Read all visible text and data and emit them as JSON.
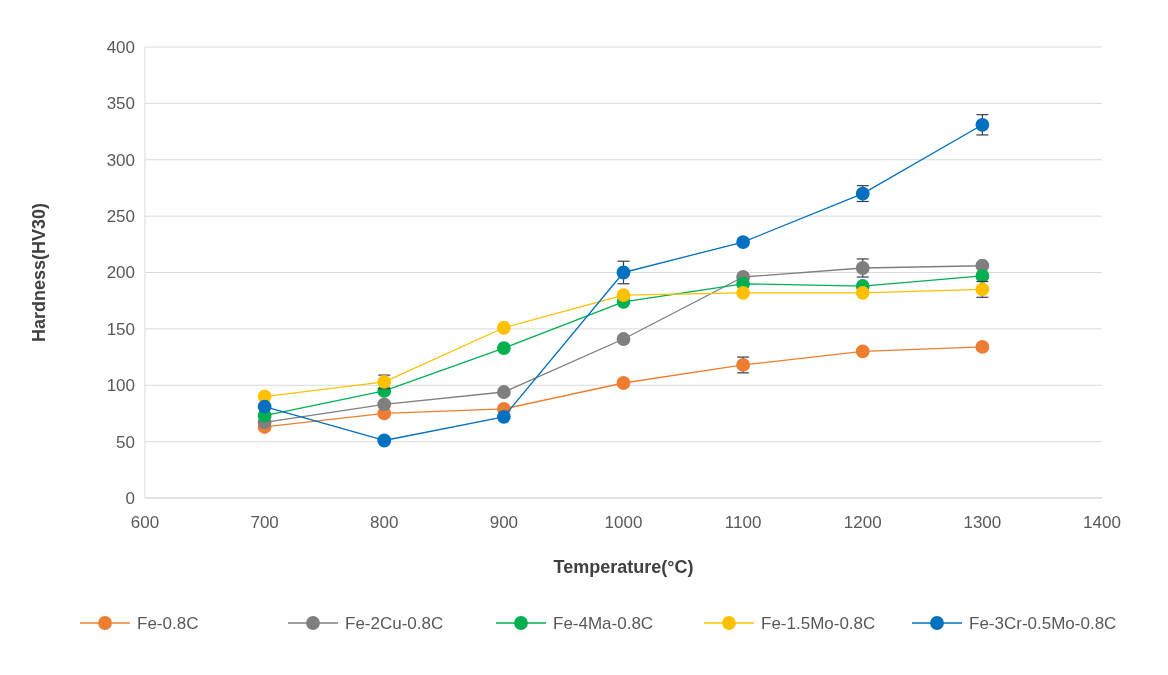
{
  "chart_data": {
    "type": "line",
    "xlabel": "Temperature(°C)",
    "ylabel": "Hardness(HV30)",
    "x": [
      700,
      800,
      900,
      1000,
      1100,
      1200,
      1300
    ],
    "xlim": [
      600,
      1400
    ],
    "xticks": [
      600,
      700,
      800,
      900,
      1000,
      1100,
      1200,
      1300,
      1400
    ],
    "ylim": [
      0,
      400
    ],
    "yticks": [
      0,
      50,
      100,
      150,
      200,
      250,
      300,
      350,
      400
    ],
    "grid": "y",
    "legend": "bottom",
    "marker": "circle",
    "series": [
      {
        "name": "Fe-0.8C",
        "color": "#ed7d31",
        "values": [
          63,
          75,
          79,
          102,
          118,
          130,
          134
        ],
        "errors": [
          null,
          null,
          null,
          null,
          7,
          null,
          null
        ]
      },
      {
        "name": "Fe-2Cu-0.8C",
        "color": "#7f7f7f",
        "values": [
          67,
          83,
          94,
          141,
          196,
          204,
          206
        ],
        "errors": [
          null,
          null,
          null,
          null,
          null,
          8,
          null
        ]
      },
      {
        "name": "Fe-4Ma-0.8C",
        "color": "#00b050",
        "values": [
          73,
          95,
          133,
          174,
          190,
          188,
          197
        ]
      },
      {
        "name": "Fe-1.5Mo-0.8C",
        "color": "#ffc000",
        "values": [
          90,
          103,
          151,
          180,
          182,
          182,
          185
        ],
        "errors": [
          null,
          6,
          null,
          null,
          null,
          null,
          7
        ]
      },
      {
        "name": "Fe-3Cr-0.5Mo-0.8C",
        "color": "#0070c0",
        "values": [
          81,
          51,
          72,
          200,
          227,
          270,
          331
        ],
        "errors": [
          null,
          null,
          null,
          10,
          null,
          7,
          9
        ]
      }
    ]
  }
}
